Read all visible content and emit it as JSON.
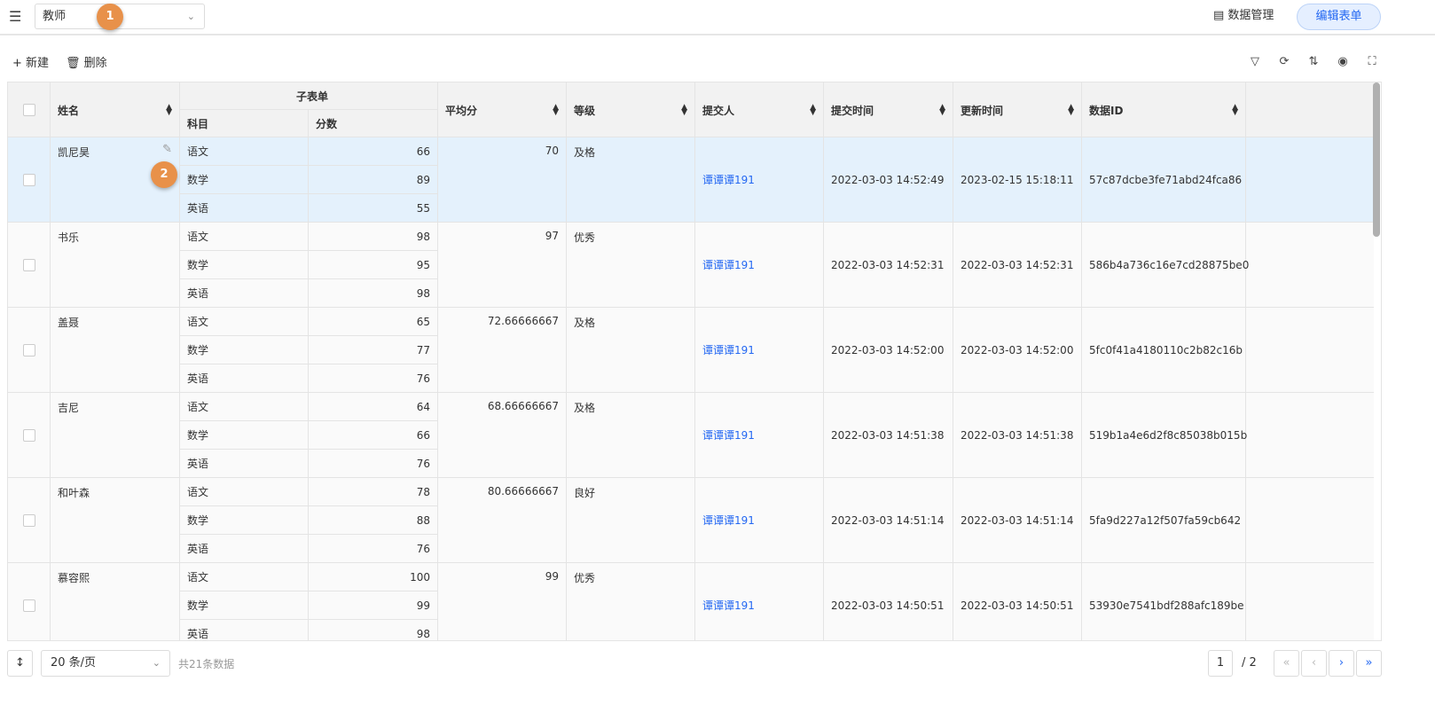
{
  "header": {
    "form_name": "教师",
    "data_management": "数据管理",
    "edit_form": "编辑表单"
  },
  "badges": [
    "1",
    "2"
  ],
  "toolbar": {
    "new": "新建",
    "delete": "删除"
  },
  "columns": {
    "name": "姓名",
    "subform": "子表单",
    "subject": "科目",
    "score": "分数",
    "average": "平均分",
    "grade": "等级",
    "submitter": "提交人",
    "submit_time": "提交时间",
    "update_time": "更新时间",
    "data_id": "数据ID"
  },
  "rows": [
    {
      "name": "凯尼昊",
      "scores": [
        [
          "语文",
          "66"
        ],
        [
          "数学",
          "89"
        ],
        [
          "英语",
          "55"
        ]
      ],
      "average": "70",
      "grade": "及格",
      "submitter": "谭谭谭191",
      "submit_time": "2022-03-03 14:52:49",
      "update_time": "2023-02-15 15:18:11",
      "id": "57c87dcbe3fe71abd24fca86",
      "selected": true
    },
    {
      "name": "书乐",
      "scores": [
        [
          "语文",
          "98"
        ],
        [
          "数学",
          "95"
        ],
        [
          "英语",
          "98"
        ]
      ],
      "average": "97",
      "grade": "优秀",
      "submitter": "谭谭谭191",
      "submit_time": "2022-03-03 14:52:31",
      "update_time": "2022-03-03 14:52:31",
      "id": "586b4a736c16e7cd28875be0"
    },
    {
      "name": "盖聂",
      "scores": [
        [
          "语文",
          "65"
        ],
        [
          "数学",
          "77"
        ],
        [
          "英语",
          "76"
        ]
      ],
      "average": "72.66666667",
      "grade": "及格",
      "submitter": "谭谭谭191",
      "submit_time": "2022-03-03 14:52:00",
      "update_time": "2022-03-03 14:52:00",
      "id": "5fc0f41a4180110c2b82c16b"
    },
    {
      "name": "吉尼",
      "scores": [
        [
          "语文",
          "64"
        ],
        [
          "数学",
          "66"
        ],
        [
          "英语",
          "76"
        ]
      ],
      "average": "68.66666667",
      "grade": "及格",
      "submitter": "谭谭谭191",
      "submit_time": "2022-03-03 14:51:38",
      "update_time": "2022-03-03 14:51:38",
      "id": "519b1a4e6d2f8c85038b015b"
    },
    {
      "name": "和叶森",
      "scores": [
        [
          "语文",
          "78"
        ],
        [
          "数学",
          "88"
        ],
        [
          "英语",
          "76"
        ]
      ],
      "average": "80.66666667",
      "grade": "良好",
      "submitter": "谭谭谭191",
      "submit_time": "2022-03-03 14:51:14",
      "update_time": "2022-03-03 14:51:14",
      "id": "5fa9d227a12f507fa59cb642"
    },
    {
      "name": "慕容熙",
      "scores": [
        [
          "语文",
          "100"
        ],
        [
          "数学",
          "99"
        ],
        [
          "英语",
          "98"
        ]
      ],
      "average": "99",
      "grade": "优秀",
      "submitter": "谭谭谭191",
      "submit_time": "2022-03-03 14:50:51",
      "update_time": "2022-03-03 14:50:51",
      "id": "53930e7541bdf288afc189be"
    }
  ],
  "footer": {
    "page_size": "20 条/页",
    "total": "共21条数据",
    "page": "1",
    "pages": "/ 2"
  },
  "colors": {
    "accent": "#2468f2",
    "selected_row": "#e4f1fc",
    "badge": "#e8914a"
  }
}
